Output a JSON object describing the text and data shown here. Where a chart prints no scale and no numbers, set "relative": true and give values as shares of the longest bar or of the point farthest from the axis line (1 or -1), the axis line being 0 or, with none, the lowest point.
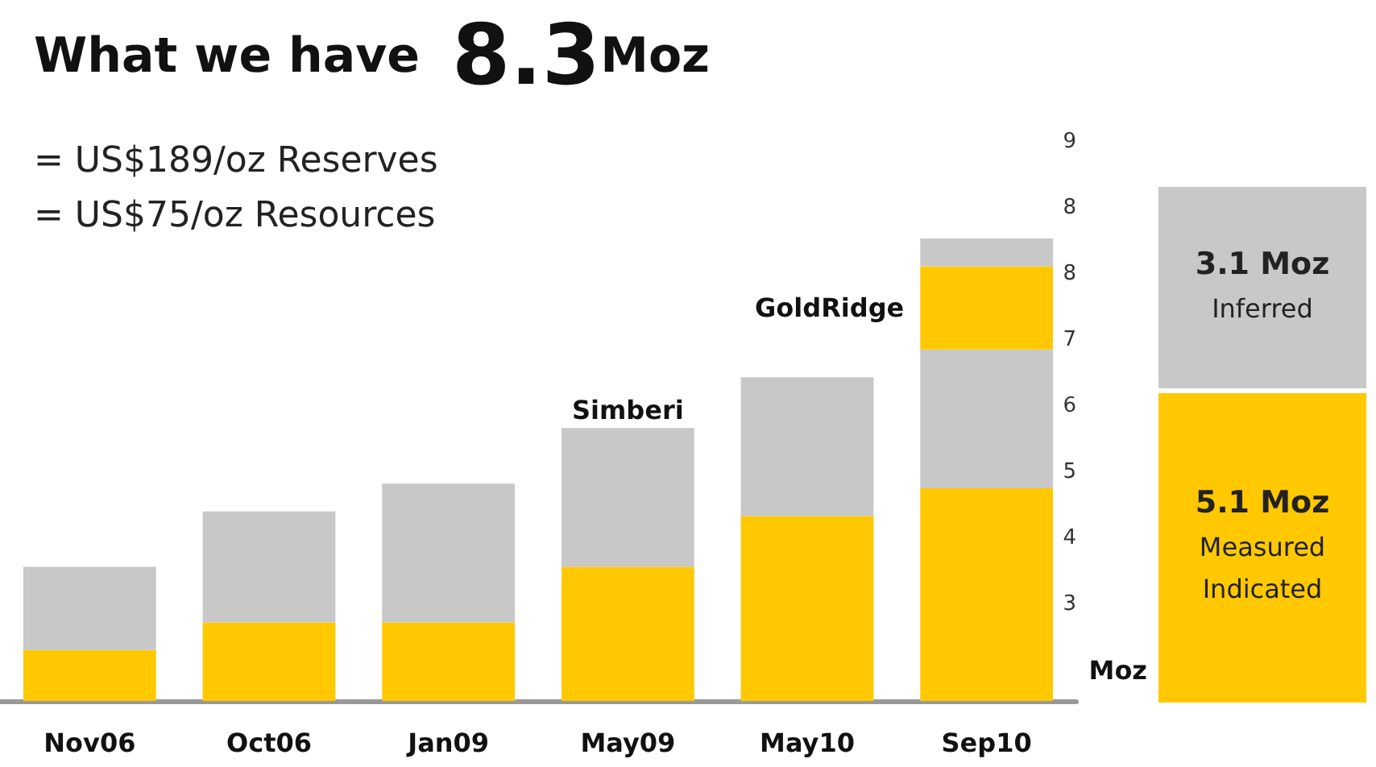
{
  "chart_data": {
    "type": "bar",
    "title": "What we have",
    "subtitle": "= US$189/oz Reserves\n= US$75/oz Resources",
    "ylabel": "Moz",
    "relative": true,
    "stacked": true,
    "categories": [
      "Nov06",
      "Oct06",
      "Jan09",
      "May09",
      "May10",
      "Sep10"
    ],
    "series": [
      {
        "color": "#ffc800",
        "values": [
          0.11,
          0.17,
          0.17,
          0.29,
          0.4,
          0.46
        ]
      },
      {
        "color": "#c8c8c8",
        "values": [
          0.18,
          0.24,
          0.3,
          0.3,
          0.3,
          0.3
        ]
      },
      {
        "color": "#ffc800",
        "values": [
          null,
          null,
          null,
          null,
          null,
          0.18
        ]
      },
      {
        "color": "#c8c8c8",
        "values": [
          null,
          null,
          null,
          null,
          null,
          0.06
        ]
      }
    ],
    "annotations": [
      "8.3Moz",
      {
        "text": "Simberi",
        "x": "May09",
        "y": 0.59
      },
      "GoldRidge",
      "3.1 Moz",
      "Inferred",
      "5.1 Moz",
      "Measured",
      "Indicated",
      "9",
      "8",
      "8",
      "7",
      "6",
      "5",
      "4",
      "3"
    ]
  }
}
